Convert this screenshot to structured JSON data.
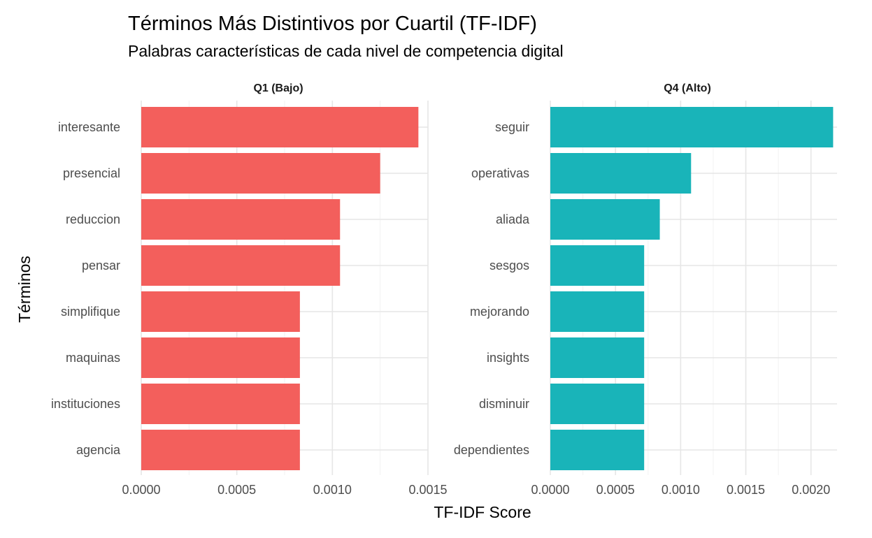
{
  "title": "Términos Más Distintivos por Cuartil (TF-IDF)",
  "subtitle": "Palabras características de cada nivel de competencia digital",
  "chart_data": [
    {
      "type": "bar",
      "orientation": "horizontal",
      "panel": "Q1 (Bajo)",
      "color": "#F35F5C",
      "categories": [
        "interesante",
        "presencial",
        "reduccion",
        "pensar",
        "simplifique",
        "maquinas",
        "instituciones",
        "agencia"
      ],
      "values": [
        0.00145,
        0.00125,
        0.00104,
        0.00104,
        0.00083,
        0.00083,
        0.00083,
        0.00083
      ],
      "xlim": [
        0,
        0.0015
      ],
      "xticks": [
        "0.0000",
        "0.0005",
        "0.0010",
        "0.0015"
      ],
      "xlabel": "TF-IDF Score",
      "ylabel": "Términos",
      "grid": true
    },
    {
      "type": "bar",
      "orientation": "horizontal",
      "panel": "Q4 (Alto)",
      "color": "#19B4B9",
      "categories": [
        "seguir",
        "operativas",
        "aliada",
        "sesgos",
        "mejorando",
        "insights",
        "disminuir",
        "dependientes"
      ],
      "values": [
        0.00217,
        0.00108,
        0.00084,
        0.00072,
        0.00072,
        0.00072,
        0.00072,
        0.00072
      ],
      "xlim": [
        0,
        0.0022
      ],
      "xticks": [
        "0.0000",
        "0.0005",
        "0.0010",
        "0.0015",
        "0.0020"
      ],
      "xlabel": "TF-IDF Score",
      "ylabel": "Términos",
      "grid": true
    }
  ],
  "axes": {
    "xlabel": "TF-IDF Score",
    "ylabel": "Términos"
  }
}
